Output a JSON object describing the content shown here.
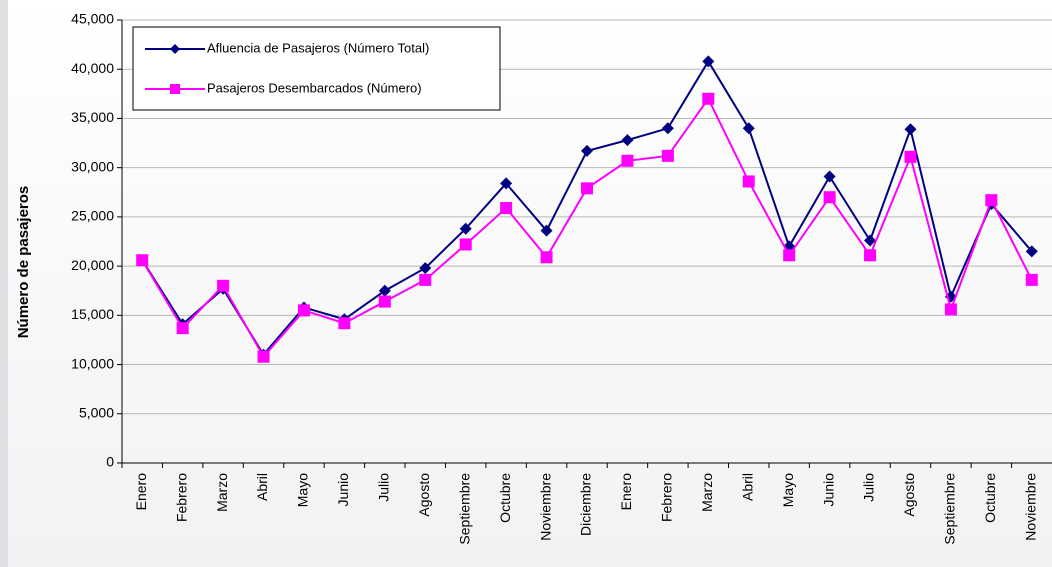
{
  "chart_data": {
    "type": "line",
    "y_label": "Número de pasajeros",
    "categories": [
      "Enero",
      "Febrero",
      "Marzo",
      "Abril",
      "Mayo",
      "Junio",
      "Julio",
      "Agosto",
      "Septiembre",
      "Octubre",
      "Noviembre",
      "Diciembre",
      "Enero",
      "Febrero",
      "Marzo",
      "Abril",
      "Mayo",
      "Junio",
      "Julio",
      "Agosto",
      "Septiembre",
      "Octubre",
      "Noviembre"
    ],
    "series": [
      {
        "name": "Afluencia de Pasajeros (Número  Total)",
        "color": "#000080",
        "marker": "diamond",
        "values": [
          20600,
          14100,
          17700,
          11000,
          15800,
          14600,
          17500,
          19800,
          23800,
          28400,
          23600,
          31700,
          32800,
          34000,
          40800,
          34000,
          22000,
          29100,
          22600,
          33900,
          16900,
          26300,
          21500
        ]
      },
      {
        "name": "Pasajeros Desembarcados (Número)",
        "color": "#ff00ff",
        "marker": "square",
        "values": [
          20600,
          13700,
          18000,
          10800,
          15500,
          14200,
          16400,
          18600,
          22200,
          25900,
          20900,
          27900,
          30700,
          31200,
          37000,
          28600,
          21100,
          27000,
          21100,
          31100,
          15600,
          26700,
          18600
        ]
      }
    ],
    "ylim": [
      0,
      45000
    ],
    "yticks": [
      0,
      {
        "value": 5000,
        "label": "5,000"
      },
      {
        "value": 10000,
        "label": "10,000"
      },
      {
        "value": 15000,
        "label": "15,000"
      },
      {
        "value": 20000,
        "label": "20,000"
      },
      {
        "value": 25000,
        "label": "25,000"
      },
      {
        "value": 30000,
        "label": "30,000"
      },
      {
        "value": 35000,
        "label": "35,000"
      },
      {
        "value": 40000,
        "label": "40,000"
      },
      {
        "value": 45000,
        "label": "45,000"
      }
    ],
    "grid": true,
    "legend": "top-left"
  }
}
